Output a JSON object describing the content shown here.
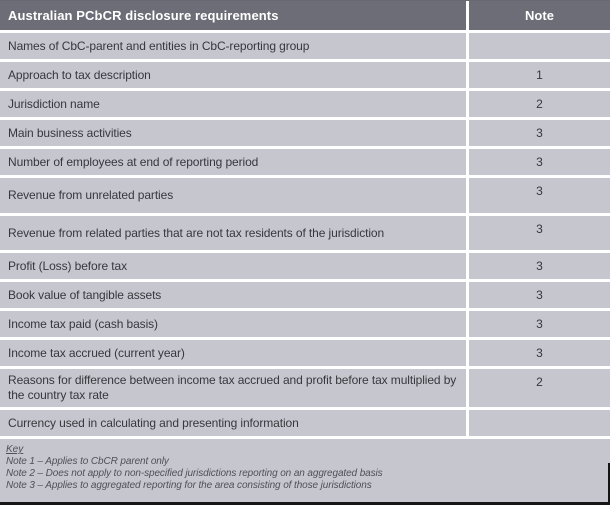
{
  "table": {
    "header": {
      "requirement": "Australian PCbCR disclosure requirements",
      "note": "Note"
    },
    "rows": [
      {
        "requirement": "Names of CbC-parent and entities in CbC-reporting group",
        "note": ""
      },
      {
        "requirement": "Approach to tax description",
        "note": "1"
      },
      {
        "requirement": "Jurisdiction name",
        "note": "2"
      },
      {
        "requirement": "Main business activities",
        "note": "3"
      },
      {
        "requirement": "Number of employees at end of reporting period",
        "note": "3"
      },
      {
        "requirement": "Revenue from unrelated parties",
        "note": "3"
      },
      {
        "requirement": "Revenue from related parties that are not tax residents of the jurisdiction",
        "note": "3"
      },
      {
        "requirement": "Profit (Loss) before tax",
        "note": "3"
      },
      {
        "requirement": "Book value of tangible assets",
        "note": "3"
      },
      {
        "requirement": "Income tax paid (cash basis)",
        "note": "3"
      },
      {
        "requirement": "Income tax accrued (current year)",
        "note": "3"
      },
      {
        "requirement": "Reasons for difference between income tax accrued and profit before tax multiplied by the country tax rate",
        "note": "2"
      },
      {
        "requirement": "Currency used in calculating and presenting information",
        "note": ""
      }
    ],
    "key": {
      "title": "Key",
      "notes": [
        "Note 1 – Applies to CbCR parent only",
        "Note 2 – Does not apply to non-specified jurisdictions reporting on an aggregated basis",
        "Note 3 – Applies to aggregated reporting for the area consisting of those jurisdictions"
      ]
    }
  },
  "colors": {
    "header_bg": "#6d6d77",
    "header_text": "#ffffff",
    "row_bg": "#c6c6ce",
    "row_text": "#37373d",
    "key_text": "#50505a",
    "edge_bar": "#161616"
  }
}
